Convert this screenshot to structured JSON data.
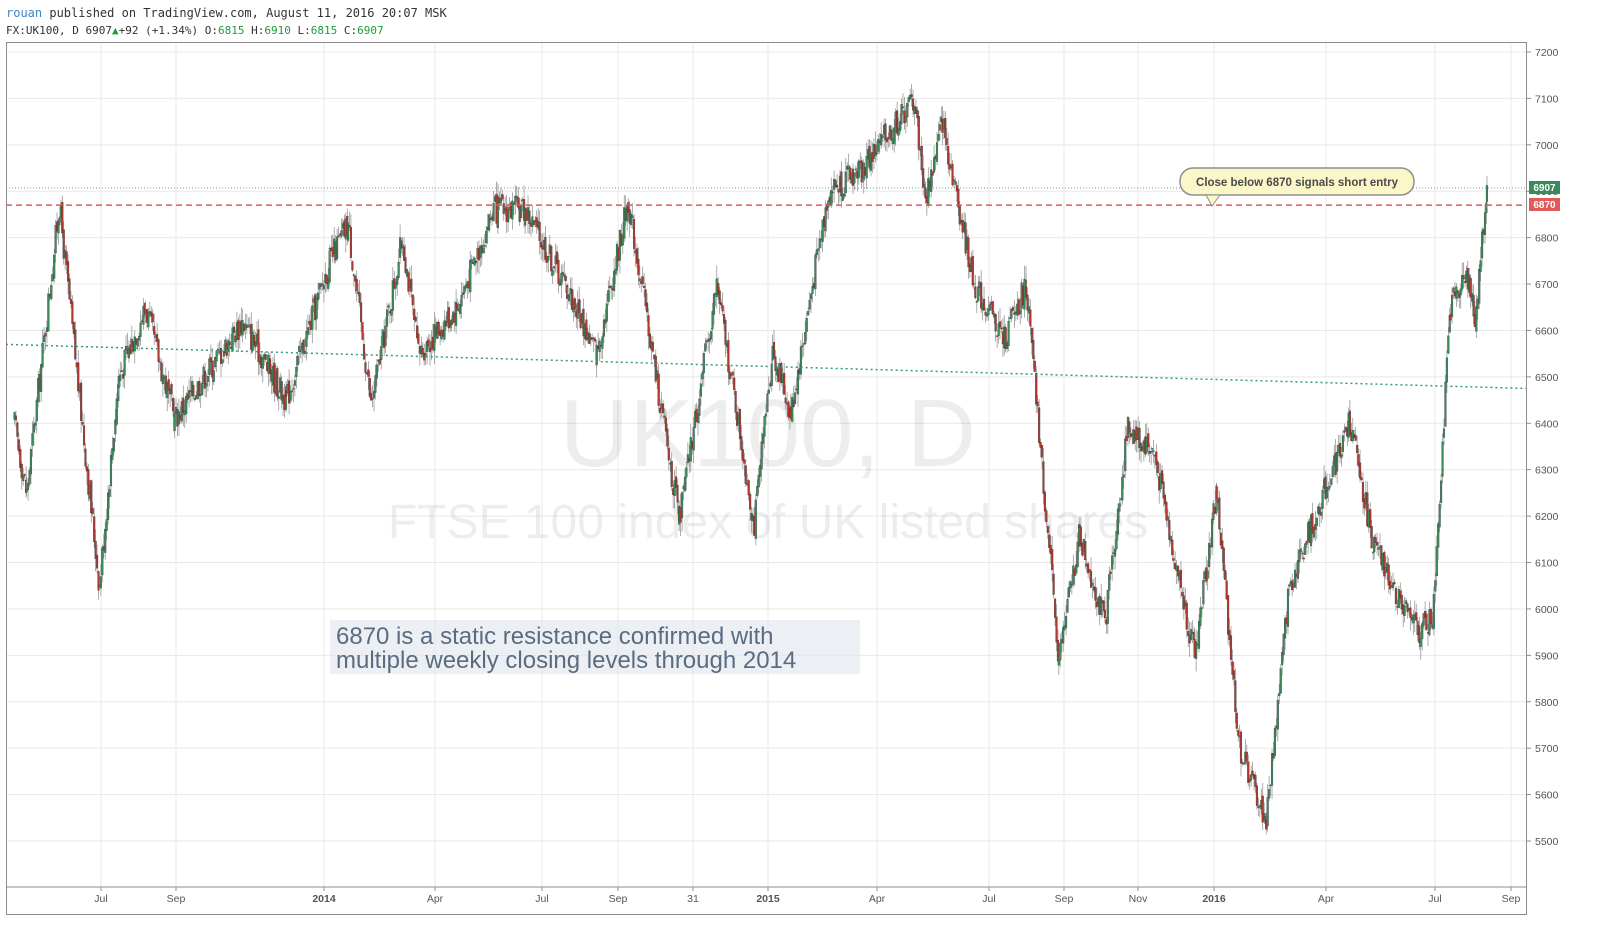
{
  "header": {
    "user": "rouan",
    "published_text": "published on TradingView.com, August 11, 2016 20:07 MSK",
    "symbol": "FX:UK100, D",
    "last": "6907",
    "change": "+92 (+1.34%)",
    "o_label": "O:",
    "o_val": "6815",
    "h_label": "H:",
    "h_val": "6910",
    "l_label": "L:",
    "l_val": "6815",
    "c_label": "C:",
    "c_val": "6907"
  },
  "colors": {
    "up_candle": "#3a8a5c",
    "down_candle": "#b0392f",
    "resistance": "#e05a5a",
    "trend_line": "#2e9e7a",
    "last_price": "#3a8a5c"
  },
  "chart_data": {
    "type": "candlestick",
    "symbol": "UK100",
    "interval": "D",
    "watermark_title": "UK100, D",
    "watermark_subtitle": "FTSE 100 index of UK listed shares",
    "y_axis": {
      "ylim": [
        5440,
        7220
      ],
      "ticks": [
        7200,
        7100,
        7000,
        6900,
        6800,
        6700,
        6600,
        6500,
        6400,
        6300,
        6200,
        6100,
        6000,
        5900,
        5800,
        5700,
        5600,
        5500
      ]
    },
    "x_axis": {
      "ticks": [
        "Jul",
        "Sep",
        "2014",
        "Apr",
        "Jul",
        "Sep",
        "31",
        "2015",
        "Apr",
        "Jul",
        "Sep",
        "Nov",
        "2016",
        "Apr",
        "Jul",
        "Sep"
      ]
    },
    "series_path": [
      [
        "2013-04-15",
        6400
      ],
      [
        "2013-04-25",
        6250
      ],
      [
        "2013-05-22",
        6870
      ],
      [
        "2013-06-24",
        6050
      ],
      [
        "2013-07-10",
        6500
      ],
      [
        "2013-08-01",
        6650
      ],
      [
        "2013-08-25",
        6410
      ],
      [
        "2013-10-20",
        6620
      ],
      [
        "2013-11-25",
        6450
      ],
      [
        "2013-12-31",
        6750
      ],
      [
        "2014-01-15",
        6830
      ],
      [
        "2014-02-03",
        6440
      ],
      [
        "2014-03-01",
        6800
      ],
      [
        "2014-03-14",
        6550
      ],
      [
        "2014-04-15",
        6650
      ],
      [
        "2014-05-15",
        6860
      ],
      [
        "2014-06-10",
        6860
      ],
      [
        "2014-07-15",
        6690
      ],
      [
        "2014-08-08",
        6550
      ],
      [
        "2014-09-03",
        6880
      ],
      [
        "2014-10-15",
        6190
      ],
      [
        "2014-11-15",
        6700
      ],
      [
        "2014-12-16",
        6180
      ],
      [
        "2014-12-31",
        6560
      ],
      [
        "2015-01-15",
        6420
      ],
      [
        "2015-02-15",
        6900
      ],
      [
        "2015-03-15",
        6950
      ],
      [
        "2015-04-27",
        7100
      ],
      [
        "2015-05-06",
        6880
      ],
      [
        "2015-05-20",
        7050
      ],
      [
        "2015-06-15",
        6700
      ],
      [
        "2015-07-10",
        6580
      ],
      [
        "2015-07-28",
        6700
      ],
      [
        "2015-08-24",
        5890
      ],
      [
        "2015-09-10",
        6160
      ],
      [
        "2015-10-01",
        5970
      ],
      [
        "2015-10-20",
        6390
      ],
      [
        "2015-11-10",
        6340
      ],
      [
        "2015-12-14",
        5900
      ],
      [
        "2016-01-01",
        6250
      ],
      [
        "2016-01-20",
        5700
      ],
      [
        "2016-02-11",
        5540
      ],
      [
        "2016-03-01",
        6050
      ],
      [
        "2016-04-20",
        6400
      ],
      [
        "2016-05-10",
        6130
      ],
      [
        "2016-06-15",
        5950
      ],
      [
        "2016-06-27",
        5980
      ],
      [
        "2016-07-12",
        6650
      ],
      [
        "2016-07-25",
        6730
      ],
      [
        "2016-08-01",
        6620
      ],
      [
        "2016-08-11",
        6907
      ]
    ],
    "resistance_level": 6870,
    "trend_line": [
      [
        "2013-04-08",
        6570
      ],
      [
        "2016-09-13",
        6475
      ]
    ],
    "last_price": 6907,
    "price_labels": {
      "last": "6907",
      "resistance": "6870"
    },
    "callout": "Close below 6870 signals short entry",
    "annotation_line1": "6870 is a static resistance confirmed with",
    "annotation_line2": "multiple weekly closing levels through 2014"
  }
}
